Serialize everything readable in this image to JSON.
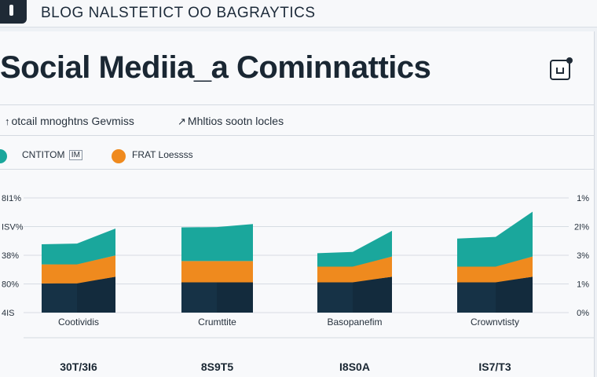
{
  "window": {
    "title": "BLOG NALSTETICT OO BAGRAYTICS"
  },
  "page": {
    "title": "Social Mediia_a Cominnattics"
  },
  "subnav": [
    {
      "icon": "arrow-up-icon",
      "glyph": "↑",
      "label": "otcail mnoghtns Gevmiss"
    },
    {
      "icon": "chart-icon",
      "glyph": "↗",
      "label": "Mhltios sootn locles"
    }
  ],
  "legend": [
    {
      "label": "CNTITOM",
      "tag": "IM",
      "color": "#1aa79c"
    },
    {
      "label": "FRAT Loessss",
      "color": "#ef8a1e"
    }
  ],
  "colors": {
    "teal": "#1aa79c",
    "orange": "#ef8a1e",
    "navy": "#163246"
  },
  "chart_data": {
    "type": "bar",
    "stacked": true,
    "categories": [
      "Cootividis",
      "Crumttite",
      "Basopanefim",
      "Crownvtisty"
    ],
    "left_tick_labels": [
      "8I1%",
      "ISV%",
      "38%",
      "80%",
      "4IS"
    ],
    "right_tick_labels": [
      "1%",
      "2I%",
      "3%",
      "1%",
      "0%"
    ],
    "totals": [
      "30T/3I6",
      "8S9T5",
      "I8S0A",
      "IS7/T3"
    ],
    "ylim": [
      0,
      100
    ],
    "grid": true,
    "series": [
      {
        "color": "navy",
        "start": [
          26,
          27,
          27,
          27
        ],
        "end": [
          32,
          27,
          32,
          32
        ]
      },
      {
        "color": "orange",
        "start": [
          17,
          19,
          14,
          14
        ],
        "end": [
          19,
          19,
          18,
          18
        ]
      },
      {
        "color": "teal",
        "start": [
          18,
          30,
          12,
          25
        ],
        "end": [
          24,
          33,
          23,
          40
        ]
      }
    ]
  }
}
